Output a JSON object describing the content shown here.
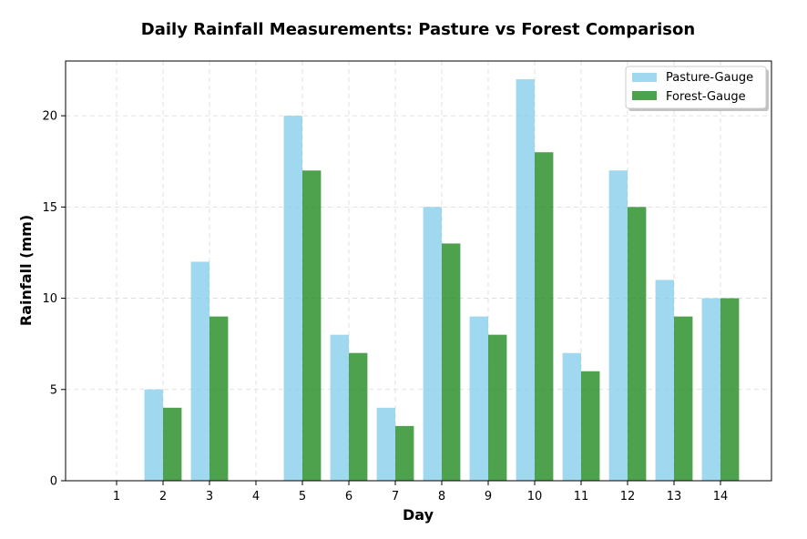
{
  "chart_data": {
    "type": "bar",
    "title": "Daily Rainfall Measurements: Pasture vs Forest Comparison",
    "xlabel": "Day",
    "ylabel": "Rainfall (mm)",
    "categories": [
      "1",
      "2",
      "3",
      "4",
      "5",
      "6",
      "7",
      "8",
      "9",
      "10",
      "11",
      "12",
      "13",
      "14"
    ],
    "series": [
      {
        "name": "Pasture-Gauge",
        "color": "#87ceeb",
        "values": [
          0,
          5,
          12,
          0,
          20,
          8,
          4,
          15,
          9,
          22,
          7,
          17,
          11,
          10
        ]
      },
      {
        "name": "Forest-Gauge",
        "color": "#228b22",
        "values": [
          0,
          4,
          9,
          0,
          17,
          7,
          3,
          13,
          8,
          18,
          6,
          15,
          9,
          10
        ]
      }
    ],
    "ylim": [
      0,
      23
    ],
    "yticks": [
      0,
      5,
      10,
      15,
      20
    ],
    "grid": true,
    "legend_position": "top-right"
  }
}
